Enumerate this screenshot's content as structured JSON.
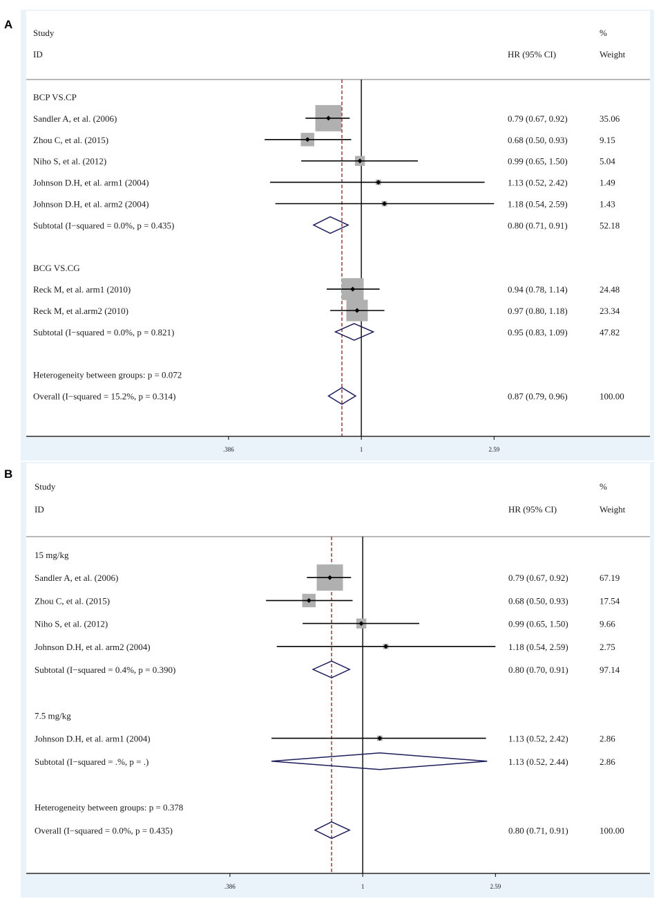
{
  "chart_data": [
    {
      "type": "forest",
      "panel_label": "A",
      "header": {
        "study": "Study",
        "id": "ID",
        "hr": "HR (95% CI)",
        "pct": "%",
        "weight": "Weight"
      },
      "axis": {
        "scale": "log",
        "ticks": [
          0.386,
          1,
          2.59
        ],
        "tick_labels": [
          ".386",
          "1",
          "2.59"
        ],
        "overall_line": 0.87
      },
      "rows": [
        {
          "kind": "group",
          "label": "BCP VS.CP"
        },
        {
          "kind": "study",
          "label": "Sandler A, et al. (2006)",
          "hr": 0.79,
          "lo": 0.67,
          "hi": 0.92,
          "weight": 35.06,
          "ci": "0.79 (0.67, 0.92)",
          "w": "35.06"
        },
        {
          "kind": "study",
          "label": "Zhou C, et al. (2015)",
          "hr": 0.68,
          "lo": 0.5,
          "hi": 0.93,
          "weight": 9.15,
          "ci": "0.68 (0.50, 0.93)",
          "w": "9.15"
        },
        {
          "kind": "study",
          "label": "Niho S, et al. (2012)",
          "hr": 0.99,
          "lo": 0.65,
          "hi": 1.5,
          "weight": 5.04,
          "ci": "0.99 (0.65, 1.50)",
          "w": "5.04"
        },
        {
          "kind": "study",
          "label": "Johnson D.H, et al. arm1 (2004)",
          "hr": 1.13,
          "lo": 0.52,
          "hi": 2.42,
          "weight": 1.49,
          "ci": "1.13 (0.52, 2.42)",
          "w": "1.49"
        },
        {
          "kind": "study",
          "label": "Johnson D.H, et al. arm2 (2004)",
          "hr": 1.18,
          "lo": 0.54,
          "hi": 2.59,
          "weight": 1.43,
          "ci": "1.18 (0.54, 2.59)",
          "w": "1.43"
        },
        {
          "kind": "subtotal",
          "label": "Subtotal  (I−squared = 0.0%, p = 0.435)",
          "hr": 0.8,
          "lo": 0.71,
          "hi": 0.91,
          "ci": "0.80 (0.71, 0.91)",
          "w": "52.18"
        },
        {
          "kind": "blank"
        },
        {
          "kind": "group",
          "label": "BCG VS.CG"
        },
        {
          "kind": "study",
          "label": "Reck M, et al. arm1 (2010)",
          "hr": 0.94,
          "lo": 0.78,
          "hi": 1.14,
          "weight": 24.48,
          "ci": "0.94 (0.78, 1.14)",
          "w": "24.48"
        },
        {
          "kind": "study",
          "label": "Reck M, et al.arm2 (2010)",
          "hr": 0.97,
          "lo": 0.8,
          "hi": 1.18,
          "weight": 23.34,
          "ci": "0.97 (0.80, 1.18)",
          "w": "23.34"
        },
        {
          "kind": "subtotal",
          "label": "Subtotal  (I−squared = 0.0%, p = 0.821)",
          "hr": 0.95,
          "lo": 0.83,
          "hi": 1.09,
          "ci": "0.95 (0.83, 1.09)",
          "w": "47.82"
        },
        {
          "kind": "blank"
        },
        {
          "kind": "note",
          "label": "Heterogeneity between groups: p = 0.072"
        },
        {
          "kind": "overall",
          "label": "Overall  (I−squared = 15.2%, p = 0.314)",
          "hr": 0.87,
          "lo": 0.79,
          "hi": 0.96,
          "ci": "0.87 (0.79, 0.96)",
          "w": "100.00"
        }
      ]
    },
    {
      "type": "forest",
      "panel_label": "B",
      "header": {
        "study": "Study",
        "id": "ID",
        "hr": "HR (95% CI)",
        "pct": "%",
        "weight": "Weight"
      },
      "axis": {
        "scale": "log",
        "ticks": [
          0.386,
          1,
          2.59
        ],
        "tick_labels": [
          ".386",
          "1",
          "2.59"
        ],
        "overall_line": 0.8
      },
      "rows": [
        {
          "kind": "group",
          "label": "15 mg/kg"
        },
        {
          "kind": "study",
          "label": "Sandler A, et al. (2006)",
          "hr": 0.79,
          "lo": 0.67,
          "hi": 0.92,
          "weight": 67.19,
          "ci": "0.79 (0.67, 0.92)",
          "w": "67.19"
        },
        {
          "kind": "study",
          "label": "Zhou C, et al. (2015)",
          "hr": 0.68,
          "lo": 0.5,
          "hi": 0.93,
          "weight": 17.54,
          "ci": "0.68 (0.50, 0.93)",
          "w": "17.54"
        },
        {
          "kind": "study",
          "label": "Niho S, et al. (2012)",
          "hr": 0.99,
          "lo": 0.65,
          "hi": 1.5,
          "weight": 9.66,
          "ci": "0.99 (0.65, 1.50)",
          "w": "9.66"
        },
        {
          "kind": "study",
          "label": "Johnson D.H, et al. arm2 (2004)",
          "hr": 1.18,
          "lo": 0.54,
          "hi": 2.59,
          "weight": 2.75,
          "ci": "1.18 (0.54, 2.59)",
          "w": "2.75"
        },
        {
          "kind": "subtotal",
          "label": "Subtotal  (I−squared = 0.4%, p = 0.390)",
          "hr": 0.8,
          "lo": 0.7,
          "hi": 0.91,
          "ci": "0.80 (0.70, 0.91)",
          "w": "97.14"
        },
        {
          "kind": "blank"
        },
        {
          "kind": "group",
          "label": "7.5 mg/kg"
        },
        {
          "kind": "study",
          "label": "Johnson D.H, et al. arm1 (2004)",
          "hr": 1.13,
          "lo": 0.52,
          "hi": 2.42,
          "weight": 2.86,
          "ci": "1.13 (0.52, 2.42)",
          "w": "2.86"
        },
        {
          "kind": "subtotal",
          "label": "Subtotal  (I−squared = .%, p = .)",
          "hr": 1.13,
          "lo": 0.52,
          "hi": 2.44,
          "ci": "1.13 (0.52, 2.44)",
          "w": "2.86"
        },
        {
          "kind": "blank"
        },
        {
          "kind": "note",
          "label": "Heterogeneity between groups: p = 0.378"
        },
        {
          "kind": "overall",
          "label": "Overall  (I−squared = 0.0%, p = 0.435)",
          "hr": 0.8,
          "lo": 0.71,
          "hi": 0.91,
          "ci": "0.80 (0.71, 0.91)",
          "w": "100.00"
        }
      ]
    }
  ],
  "colors": {
    "panel_bg": "#eaf3fa",
    "box": "#b0b0b0",
    "diamond": "#1b1b5a",
    "dashed": "#8b1a1a",
    "line": "#000000",
    "divider": "#a0a0a0"
  }
}
